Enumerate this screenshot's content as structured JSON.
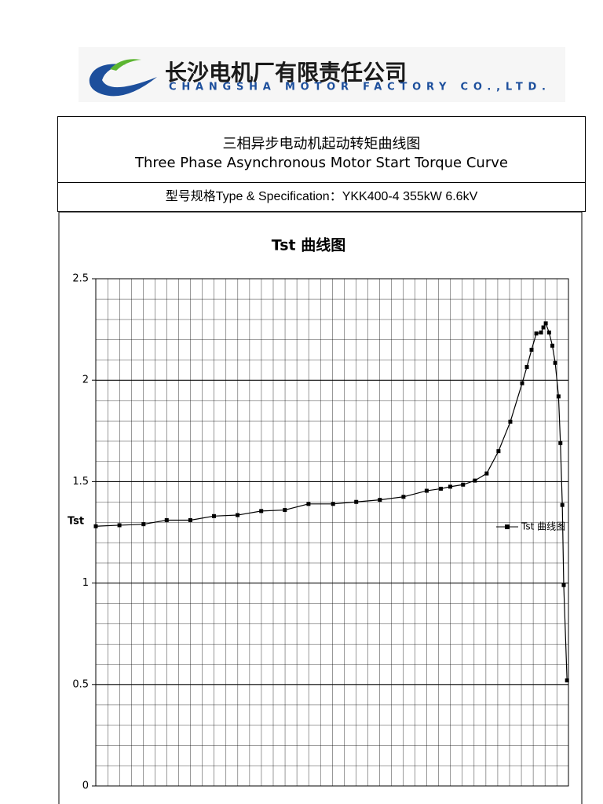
{
  "logo": {
    "name_cn": "长沙电机厂有限责任公司",
    "name_en": "CHANGSHA MOTOR FACTORY CO.,LTD."
  },
  "header": {
    "title_cn": "三相异步电动机起动转矩曲线图",
    "title_en": "Three Phase Asynchronous Motor Start Torque Curve",
    "spec": "型号规格Type & Specification：YKK400-4 355kW 6.6kV"
  },
  "chart_data": {
    "type": "line",
    "title": "Tst 曲线图",
    "y_label": "Tst",
    "xlim": [
      0,
      1
    ],
    "ylim": [
      0,
      2.5
    ],
    "yticks": [
      0,
      0.5,
      1,
      1.5,
      2,
      2.5
    ],
    "grid": true,
    "legend": "right",
    "marker": "square",
    "series": [
      {
        "name": "Tst 曲线图",
        "color": "#000000",
        "x": [
          0,
          0.05,
          0.101,
          0.15,
          0.2,
          0.25,
          0.3,
          0.35,
          0.4,
          0.45,
          0.502,
          0.551,
          0.601,
          0.651,
          0.7,
          0.73,
          0.75,
          0.777,
          0.802,
          0.827,
          0.852,
          0.877,
          0.902,
          0.912,
          0.922,
          0.932,
          0.942,
          0.947,
          0.952,
          0.959,
          0.966,
          0.972,
          0.979,
          0.983,
          0.987,
          0.99,
          0.997
        ],
        "values": [
          1.28,
          1.285,
          1.29,
          1.31,
          1.31,
          1.33,
          1.335,
          1.355,
          1.36,
          1.39,
          1.39,
          1.4,
          1.41,
          1.425,
          1.455,
          1.465,
          1.475,
          1.485,
          1.505,
          1.54,
          1.65,
          1.795,
          1.985,
          2.065,
          2.15,
          2.23,
          2.235,
          2.26,
          2.28,
          2.235,
          2.17,
          2.085,
          1.92,
          1.69,
          1.385,
          0.99,
          0.52
        ]
      }
    ]
  }
}
